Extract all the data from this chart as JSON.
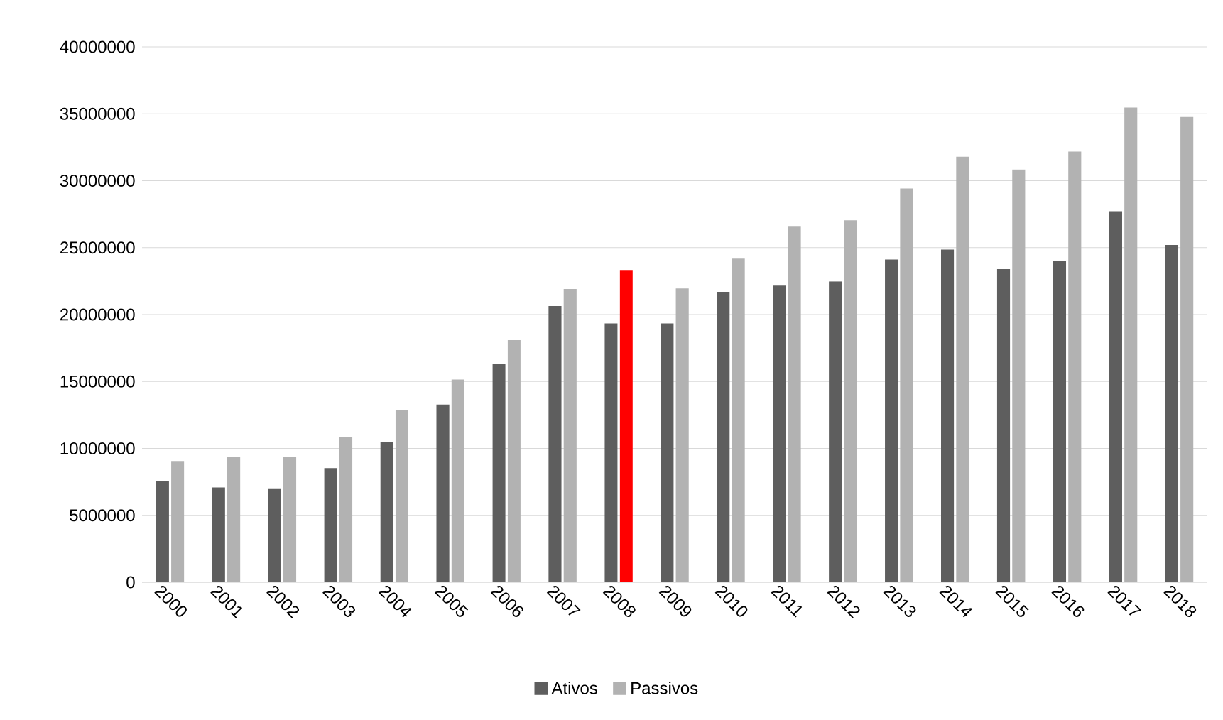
{
  "chart_data": {
    "type": "bar",
    "categories": [
      "2000",
      "2001",
      "2002",
      "2003",
      "2004",
      "2005",
      "2006",
      "2007",
      "2008",
      "2009",
      "2010",
      "2011",
      "2012",
      "2013",
      "2014",
      "2015",
      "2016",
      "2017",
      "2018"
    ],
    "series": [
      {
        "name": "Ativos",
        "color": "#5e5e5e",
        "values": [
          7540000,
          7080000,
          7010000,
          8530000,
          10480000,
          13270000,
          16320000,
          20640000,
          19330000,
          19330000,
          21700000,
          22160000,
          22480000,
          24110000,
          24850000,
          23400000,
          24000000,
          27720000,
          25200000
        ]
      },
      {
        "name": "Passivos",
        "color": "#b2b2b2",
        "colors": [
          "#b2b2b2",
          "#b2b2b2",
          "#b2b2b2",
          "#b2b2b2",
          "#b2b2b2",
          "#b2b2b2",
          "#b2b2b2",
          "#b2b2b2",
          "#ff0000",
          "#b2b2b2",
          "#b2b2b2",
          "#b2b2b2",
          "#b2b2b2",
          "#b2b2b2",
          "#b2b2b2",
          "#b2b2b2",
          "#b2b2b2",
          "#b2b2b2",
          "#b2b2b2"
        ],
        "values": [
          9060000,
          9350000,
          9380000,
          10830000,
          12880000,
          15150000,
          18090000,
          21910000,
          23330000,
          21950000,
          24180000,
          26620000,
          27040000,
          29420000,
          31790000,
          30830000,
          32180000,
          35470000,
          34760000
        ]
      }
    ],
    "ylim": [
      0,
      40000000
    ],
    "yticks": [
      0,
      5000000,
      10000000,
      15000000,
      20000000,
      25000000,
      30000000,
      35000000,
      40000000
    ],
    "grid": "y",
    "legend": "bottom"
  }
}
